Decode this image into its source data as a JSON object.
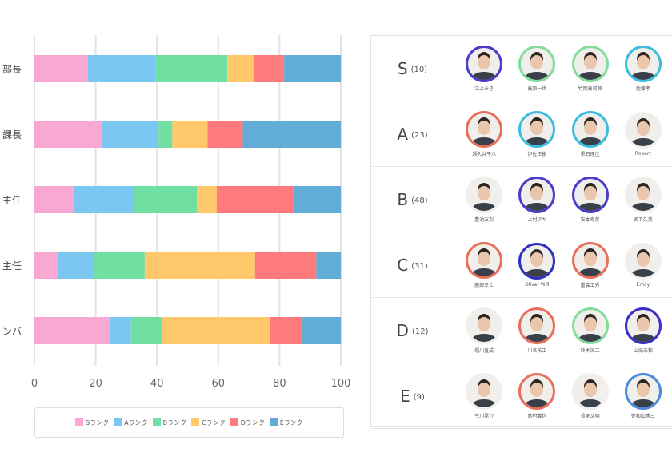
{
  "chart_data": {
    "type": "bar",
    "orientation": "horizontal",
    "stacked": true,
    "categories": [
      "部長",
      "課長",
      "主任",
      "主任",
      "ンバ"
    ],
    "series": [
      {
        "name": "Sランク",
        "color": "#f9a8d4",
        "values": [
          17.5,
          22,
          13,
          7.5,
          24.5
        ]
      },
      {
        "name": "Aランク",
        "color": "#7cc6f2",
        "values": [
          22,
          18.5,
          19.5,
          12,
          7
        ]
      },
      {
        "name": "Bランク",
        "color": "#6fdfa2",
        "values": [
          23.5,
          4.5,
          20.5,
          16.5,
          10
        ]
      },
      {
        "name": "Cランク",
        "color": "#ffc96b",
        "values": [
          8.5,
          11.5,
          6.5,
          36,
          35.5
        ]
      },
      {
        "name": "Dランク",
        "color": "#ff7b7b",
        "values": [
          10,
          11.5,
          25,
          20,
          10
        ]
      },
      {
        "name": "Eランク",
        "color": "#62acd8",
        "values": [
          18.5,
          32,
          15.5,
          8,
          13
        ]
      }
    ],
    "xlim": [
      0,
      100
    ],
    "xticks": [
      "0",
      "20",
      "40",
      "60",
      "80",
      "100"
    ],
    "grid": true,
    "legend": "bottom"
  },
  "ranks": [
    {
      "letter": "S",
      "count": "(10)",
      "people": [
        {
          "name": "江上みき",
          "ring": "#4a3cc8"
        },
        {
          "name": "高原一世",
          "ring": "#84dc9c"
        },
        {
          "name": "竹岡高司郎",
          "ring": "#84dc9c"
        },
        {
          "name": "佐藤孝",
          "ring": "#3bbde0"
        }
      ]
    },
    {
      "letter": "A",
      "count": "(23)",
      "people": [
        {
          "name": "瀬久井平八",
          "ring": "#e8705a"
        },
        {
          "name": "伊佐正樹",
          "ring": "#3bbde0"
        },
        {
          "name": "黒石理佳",
          "ring": "#3bbde0"
        },
        {
          "name": "Robert",
          "ring": ""
        }
      ]
    },
    {
      "letter": "B",
      "count": "(48)",
      "people": [
        {
          "name": "豊池友梨",
          "ring": ""
        },
        {
          "name": "上村アヤ",
          "ring": "#4a3cc8"
        },
        {
          "name": "安本寿彦",
          "ring": "#4a3cc8"
        },
        {
          "name": "武下久美",
          "ring": ""
        }
      ]
    },
    {
      "letter": "C",
      "count": "(31)",
      "people": [
        {
          "name": "鹿部幸士",
          "ring": "#e8705a"
        },
        {
          "name": "Oliver Will",
          "ring": "#2f2fc0"
        },
        {
          "name": "重森工秀",
          "ring": "#e8705a"
        },
        {
          "name": "Emily",
          "ring": ""
        }
      ]
    },
    {
      "letter": "D",
      "count": "(12)",
      "people": [
        {
          "name": "堀川直成",
          "ring": ""
        },
        {
          "name": "川名祐工",
          "ring": "#e8705a"
        },
        {
          "name": "鈴木深二",
          "ring": "#84dc9c"
        },
        {
          "name": "山城未和",
          "ring": "#3a2fc0"
        }
      ]
    },
    {
      "letter": "E",
      "count": "(9)",
      "people": [
        {
          "name": "今川晃介",
          "ring": ""
        },
        {
          "name": "島村義信",
          "ring": "#e8705a"
        },
        {
          "name": "長尾文明",
          "ring": ""
        },
        {
          "name": "佐和山博三",
          "ring": "#4a8ad8"
        }
      ]
    }
  ]
}
